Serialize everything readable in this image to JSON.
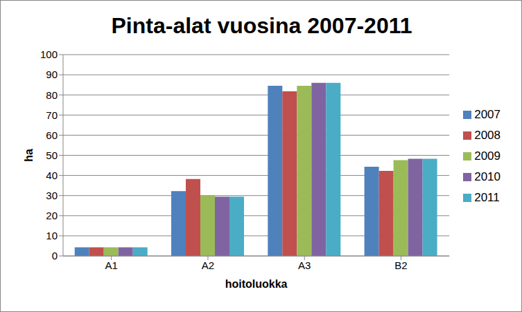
{
  "chart_data": {
    "type": "bar",
    "title": "Pinta-alat vuosina 2007-2011",
    "x_label": "hoitoluokka",
    "y_label": "ha",
    "categories": [
      "A1",
      "A2",
      "A3",
      "B2"
    ],
    "series": [
      {
        "name": "2007",
        "color": "#4F81BD",
        "values": [
          4.3,
          32.2,
          84.5,
          44.3
        ]
      },
      {
        "name": "2008",
        "color": "#C0504D",
        "values": [
          4.3,
          38.2,
          81.8,
          42.3
        ]
      },
      {
        "name": "2009",
        "color": "#9BBB59",
        "values": [
          4.3,
          30.1,
          84.5,
          47.6
        ]
      },
      {
        "name": "2010",
        "color": "#8064A2",
        "values": [
          4.3,
          29.5,
          86,
          48.3
        ]
      },
      {
        "name": "2011",
        "color": "#4BACC6",
        "values": [
          4.3,
          29.5,
          86,
          48.3
        ]
      }
    ],
    "ylim": [
      0,
      100
    ],
    "yticks": [
      0,
      10,
      20,
      30,
      40,
      50,
      60,
      70,
      80,
      90,
      100
    ],
    "grid": true,
    "legend": "right"
  }
}
